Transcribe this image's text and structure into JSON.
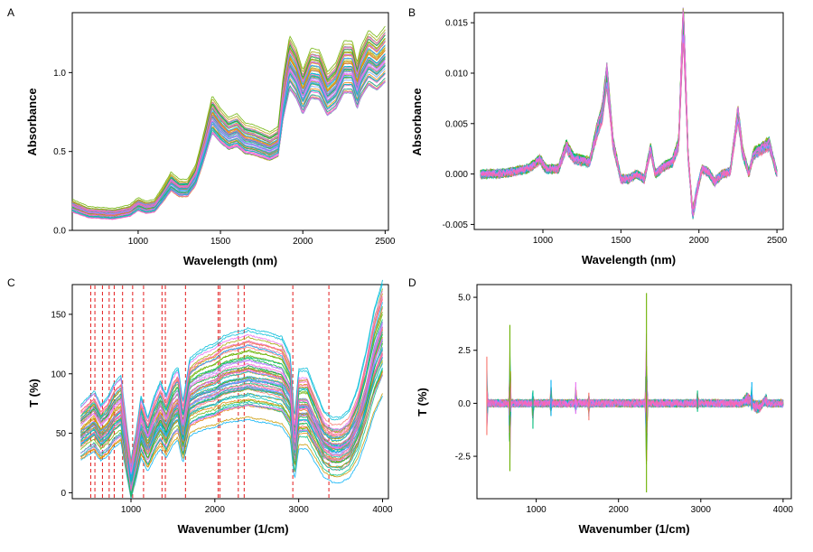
{
  "chart_data": [
    {
      "panel": "A",
      "type": "line",
      "xlabel": "Wavelength (nm)",
      "ylabel": "Absorbance",
      "xlim": [
        600,
        2520
      ],
      "ylim": [
        0.0,
        1.38
      ],
      "xticks": [
        1000,
        1500,
        2000,
        2500
      ],
      "yticks": [
        0.0,
        0.5,
        1.0
      ],
      "ytick_labels": [
        "0.0",
        "0.5",
        "1.0"
      ],
      "grid": false,
      "legend": "none",
      "n_series": 60,
      "mean_curve": {
        "x": [
          600,
          700,
          850,
          950,
          1000,
          1050,
          1100,
          1150,
          1200,
          1250,
          1300,
          1350,
          1400,
          1450,
          1500,
          1550,
          1600,
          1650,
          1700,
          1750,
          1800,
          1850,
          1880,
          1920,
          1960,
          2000,
          2050,
          2100,
          2150,
          2200,
          2250,
          2300,
          2330,
          2350,
          2400,
          2450,
          2500
        ],
        "y": [
          0.15,
          0.11,
          0.1,
          0.12,
          0.16,
          0.14,
          0.15,
          0.22,
          0.3,
          0.26,
          0.26,
          0.34,
          0.52,
          0.72,
          0.65,
          0.6,
          0.62,
          0.57,
          0.56,
          0.54,
          0.52,
          0.55,
          0.82,
          1.05,
          0.98,
          0.86,
          0.98,
          0.97,
          0.85,
          0.9,
          1.02,
          1.02,
          0.9,
          0.98,
          1.08,
          1.04,
          1.1
        ]
      }
    },
    {
      "panel": "B",
      "type": "line",
      "xlabel": "Wavelength (nm)",
      "ylabel": "Absorbance",
      "xlim": [
        560,
        2540
      ],
      "ylim": [
        -0.0055,
        0.016
      ],
      "xticks": [
        1000,
        1500,
        2000,
        2500
      ],
      "yticks": [
        -0.005,
        0.0,
        0.005,
        0.01,
        0.015
      ],
      "ytick_labels": [
        "-0.005",
        "0.000",
        "0.005",
        "0.010",
        "0.015"
      ],
      "grid": false,
      "legend": "none",
      "n_series": 60,
      "mean_curve": {
        "x": [
          600,
          700,
          800,
          900,
          950,
          980,
          1020,
          1100,
          1150,
          1200,
          1300,
          1350,
          1380,
          1410,
          1450,
          1500,
          1550,
          1600,
          1650,
          1690,
          1720,
          1780,
          1830,
          1870,
          1900,
          1930,
          1960,
          1990,
          2020,
          2060,
          2100,
          2150,
          2200,
          2250,
          2280,
          2320,
          2350,
          2400,
          2450,
          2500
        ],
        "y": [
          0.0,
          0.0,
          0.0002,
          0.0005,
          0.001,
          0.0015,
          0.0005,
          0.0005,
          0.0028,
          0.0015,
          0.0012,
          0.0045,
          0.006,
          0.0098,
          0.003,
          -0.0005,
          -0.0005,
          0.0,
          -0.0005,
          0.0025,
          0.0,
          0.0008,
          0.0012,
          0.003,
          0.0155,
          0.002,
          -0.004,
          -0.0015,
          0.0005,
          0.0002,
          -0.0008,
          0.0,
          0.0002,
          0.006,
          0.0022,
          0.0,
          0.002,
          0.0025,
          0.003,
          0.0
        ]
      }
    },
    {
      "panel": "C",
      "type": "line",
      "xlabel": "Wavenumber (1/cm)",
      "ylabel": "T (%)",
      "xlim": [
        300,
        4070
      ],
      "ylim": [
        -5,
        175
      ],
      "xticks": [
        1000,
        2000,
        3000,
        4000
      ],
      "yticks": [
        0,
        50,
        100,
        150
      ],
      "grid": false,
      "legend": "none",
      "n_series": 60,
      "reference_lines_x": [
        520,
        570,
        660,
        740,
        800,
        900,
        1020,
        1150,
        1370,
        1410,
        1650,
        2040,
        2060,
        2280,
        2350,
        2930,
        3360
      ],
      "mean_curve": {
        "x": [
          400,
          480,
          560,
          640,
          720,
          800,
          880,
          940,
          1000,
          1060,
          1120,
          1200,
          1280,
          1350,
          1420,
          1500,
          1560,
          1620,
          1700,
          1800,
          1900,
          2000,
          2100,
          2200,
          2300,
          2400,
          2500,
          2600,
          2700,
          2800,
          2900,
          2950,
          3000,
          3100,
          3200,
          3300,
          3400,
          3500,
          3600,
          3700,
          3800,
          3900,
          4000
        ],
        "y": [
          50,
          55,
          60,
          50,
          55,
          65,
          70,
          40,
          10,
          30,
          55,
          40,
          55,
          65,
          55,
          70,
          75,
          50,
          80,
          85,
          88,
          90,
          95,
          97,
          98,
          100,
          98,
          97,
          95,
          93,
          80,
          35,
          70,
          70,
          55,
          40,
          35,
          35,
          40,
          55,
          80,
          110,
          130
        ]
      }
    },
    {
      "panel": "D",
      "type": "line",
      "xlabel": "Wavenumber (1/cm)",
      "ylabel": "T (%)",
      "xlim": [
        280,
        4100
      ],
      "ylim": [
        -4.5,
        5.6
      ],
      "xticks": [
        1000,
        2000,
        3000,
        4000
      ],
      "yticks": [
        -2.5,
        0.0,
        2.5,
        5.0
      ],
      "ytick_labels": [
        "-2.5",
        "0.0",
        "2.5",
        "5.0"
      ],
      "grid": false,
      "legend": "none",
      "n_series": 60,
      "spikes": [
        {
          "x": 400,
          "hi": 2.2,
          "lo": -1.5
        },
        {
          "x": 680,
          "hi": 3.7,
          "lo": -3.2
        },
        {
          "x": 960,
          "hi": 0.6,
          "lo": -1.2
        },
        {
          "x": 1180,
          "hi": 1.1,
          "lo": -0.6
        },
        {
          "x": 1480,
          "hi": 1.0,
          "lo": -0.5
        },
        {
          "x": 1640,
          "hi": 0.5,
          "lo": -0.8
        },
        {
          "x": 2340,
          "hi": 5.2,
          "lo": -4.2
        },
        {
          "x": 2960,
          "hi": 0.6,
          "lo": -0.4
        },
        {
          "x": 3620,
          "hi": 1.0,
          "lo": -0.3
        }
      ]
    }
  ],
  "panels": {
    "A": {
      "label": "A"
    },
    "B": {
      "label": "B"
    },
    "C": {
      "label": "C"
    },
    "D": {
      "label": "D"
    }
  },
  "palette": [
    "#f8766d",
    "#e58700",
    "#c99800",
    "#a3a500",
    "#6bb100",
    "#00ba38",
    "#00bf7d",
    "#00c0af",
    "#00bcd8",
    "#00b0f6",
    "#619cff",
    "#b983ff",
    "#e76bf3",
    "#fd61d1",
    "#ff67a4"
  ],
  "reference_line_color": "#e31a1c"
}
